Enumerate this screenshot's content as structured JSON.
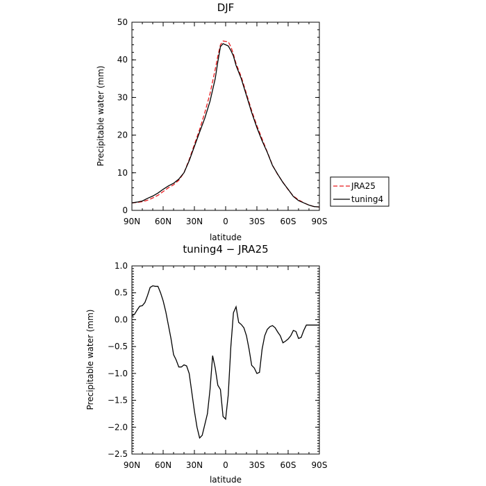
{
  "chart_data": [
    {
      "type": "line",
      "title": "DJF",
      "xlabel": "latitude",
      "ylabel": "Precipitable water (mm)",
      "xlim": [
        90,
        -90
      ],
      "ylim": [
        0,
        50
      ],
      "x_ticks": [
        {
          "value": 90,
          "label": "90N"
        },
        {
          "value": 60,
          "label": "60N"
        },
        {
          "value": 30,
          "label": "30N"
        },
        {
          "value": 0,
          "label": "0"
        },
        {
          "value": -30,
          "label": "30S"
        },
        {
          "value": -60,
          "label": "60S"
        },
        {
          "value": -90,
          "label": "90S"
        }
      ],
      "y_ticks": [
        {
          "value": 0,
          "label": "0"
        },
        {
          "value": 10,
          "label": "10"
        },
        {
          "value": 20,
          "label": "20"
        },
        {
          "value": 30,
          "label": "30"
        },
        {
          "value": 40,
          "label": "40"
        },
        {
          "value": 50,
          "label": "50"
        }
      ],
      "legend_position": "right",
      "series": [
        {
          "name": "JRA25",
          "color": "#e8191c",
          "dash": "dashed",
          "x": [
            90,
            85,
            80,
            75,
            70,
            65,
            60,
            55,
            50,
            45,
            40,
            35,
            30,
            25,
            20,
            15,
            10,
            7.5,
            5,
            2.5,
            0,
            -2.5,
            -5,
            -7.5,
            -10,
            -15,
            -20,
            -25,
            -30,
            -35,
            -40,
            -45,
            -50,
            -55,
            -60,
            -65,
            -70,
            -75,
            -80,
            -85,
            -90
          ],
          "y": [
            2.0,
            2.1,
            2.3,
            2.7,
            3.3,
            4.0,
            5.0,
            6.0,
            6.8,
            8.0,
            10.0,
            13.5,
            17.5,
            21.5,
            26.0,
            31.0,
            37.5,
            41.0,
            44.0,
            45.0,
            44.9,
            44.8,
            43.5,
            41.5,
            39.0,
            35.5,
            31.0,
            26.5,
            22.5,
            19.0,
            15.5,
            12.0,
            9.5,
            7.5,
            5.5,
            3.8,
            2.8,
            2.0,
            1.4,
            1.0,
            0.9
          ]
        },
        {
          "name": "tuning4",
          "color": "#000000",
          "dash": "solid",
          "x": [
            90,
            85,
            80,
            75,
            70,
            65,
            60,
            55,
            50,
            45,
            40,
            35,
            30,
            25,
            20,
            15,
            10,
            7.5,
            5,
            2.5,
            0,
            -2.5,
            -5,
            -7.5,
            -10,
            -15,
            -20,
            -25,
            -30,
            -35,
            -40,
            -45,
            -50,
            -55,
            -60,
            -65,
            -70,
            -75,
            -80,
            -85,
            -90
          ],
          "y": [
            2.0,
            2.2,
            2.5,
            3.2,
            3.8,
            4.6,
            5.6,
            6.5,
            7.2,
            8.3,
            10.0,
            13.2,
            17.0,
            20.8,
            24.5,
            29.0,
            35.0,
            39.5,
            43.5,
            44.3,
            44.0,
            43.7,
            42.5,
            41.0,
            38.5,
            35.0,
            30.5,
            26.0,
            22.0,
            18.5,
            15.4,
            11.9,
            9.6,
            7.4,
            5.6,
            3.7,
            2.6,
            2.0,
            1.4,
            1.0,
            0.9
          ]
        }
      ]
    },
    {
      "type": "line",
      "title": "tuning4 − JRA25",
      "xlabel": "latitude",
      "ylabel": "Precipitable water (mm)",
      "xlim": [
        90,
        -90
      ],
      "ylim": [
        -2.5,
        1.0
      ],
      "x_ticks": [
        {
          "value": 90,
          "label": "90N"
        },
        {
          "value": 60,
          "label": "60N"
        },
        {
          "value": 30,
          "label": "30N"
        },
        {
          "value": 0,
          "label": "0"
        },
        {
          "value": -30,
          "label": "30S"
        },
        {
          "value": -60,
          "label": "60S"
        },
        {
          "value": -90,
          "label": "90S"
        }
      ],
      "y_ticks": [
        {
          "value": 1.0,
          "label": "1.0"
        },
        {
          "value": 0.5,
          "label": "0.5"
        },
        {
          "value": 0.0,
          "label": "0.0"
        },
        {
          "value": -0.5,
          "label": "−0.5"
        },
        {
          "value": -1.0,
          "label": "−1.0"
        },
        {
          "value": -1.5,
          "label": "−1.5"
        },
        {
          "value": -2.0,
          "label": "−2.0"
        },
        {
          "value": -2.5,
          "label": "−2.5"
        }
      ],
      "series": [
        {
          "name": "",
          "color": "#000000",
          "dash": "solid",
          "x": [
            90,
            87.5,
            85,
            82.5,
            80,
            77.5,
            75,
            72.5,
            70,
            67.5,
            65,
            62.5,
            60,
            57.5,
            55,
            52.5,
            50,
            47.5,
            45,
            42.5,
            40,
            37.5,
            35,
            32.5,
            30,
            27.5,
            25,
            22.5,
            20,
            17.5,
            15,
            12.5,
            10,
            7.5,
            5,
            2.5,
            0,
            -2.5,
            -5,
            -7.5,
            -10,
            -12.5,
            -15,
            -17.5,
            -20,
            -22.5,
            -25,
            -27.5,
            -30,
            -32.5,
            -35,
            -37.5,
            -40,
            -42.5,
            -45,
            -47.5,
            -50,
            -52.5,
            -55,
            -57.5,
            -60,
            -62.5,
            -65,
            -67.5,
            -70,
            -72.5,
            -75,
            -77.5,
            -80,
            -82.5,
            -85,
            -87.5,
            -90
          ],
          "y": [
            0.07,
            0.1,
            0.18,
            0.25,
            0.26,
            0.32,
            0.45,
            0.6,
            0.63,
            0.62,
            0.62,
            0.5,
            0.35,
            0.15,
            -0.1,
            -0.35,
            -0.65,
            -0.75,
            -0.88,
            -0.88,
            -0.84,
            -0.86,
            -1.0,
            -1.35,
            -1.7,
            -2.0,
            -2.2,
            -2.15,
            -1.95,
            -1.75,
            -1.3,
            -0.67,
            -0.9,
            -1.22,
            -1.3,
            -1.8,
            -1.85,
            -1.4,
            -0.5,
            0.13,
            0.24,
            -0.05,
            -0.09,
            -0.15,
            -0.3,
            -0.55,
            -0.85,
            -0.9,
            -1.0,
            -0.98,
            -0.55,
            -0.3,
            -0.18,
            -0.13,
            -0.11,
            -0.15,
            -0.23,
            -0.3,
            -0.43,
            -0.4,
            -0.36,
            -0.3,
            -0.2,
            -0.22,
            -0.35,
            -0.33,
            -0.2,
            -0.1,
            -0.1,
            -0.1,
            -0.1,
            -0.1,
            -0.1
          ]
        }
      ]
    }
  ]
}
